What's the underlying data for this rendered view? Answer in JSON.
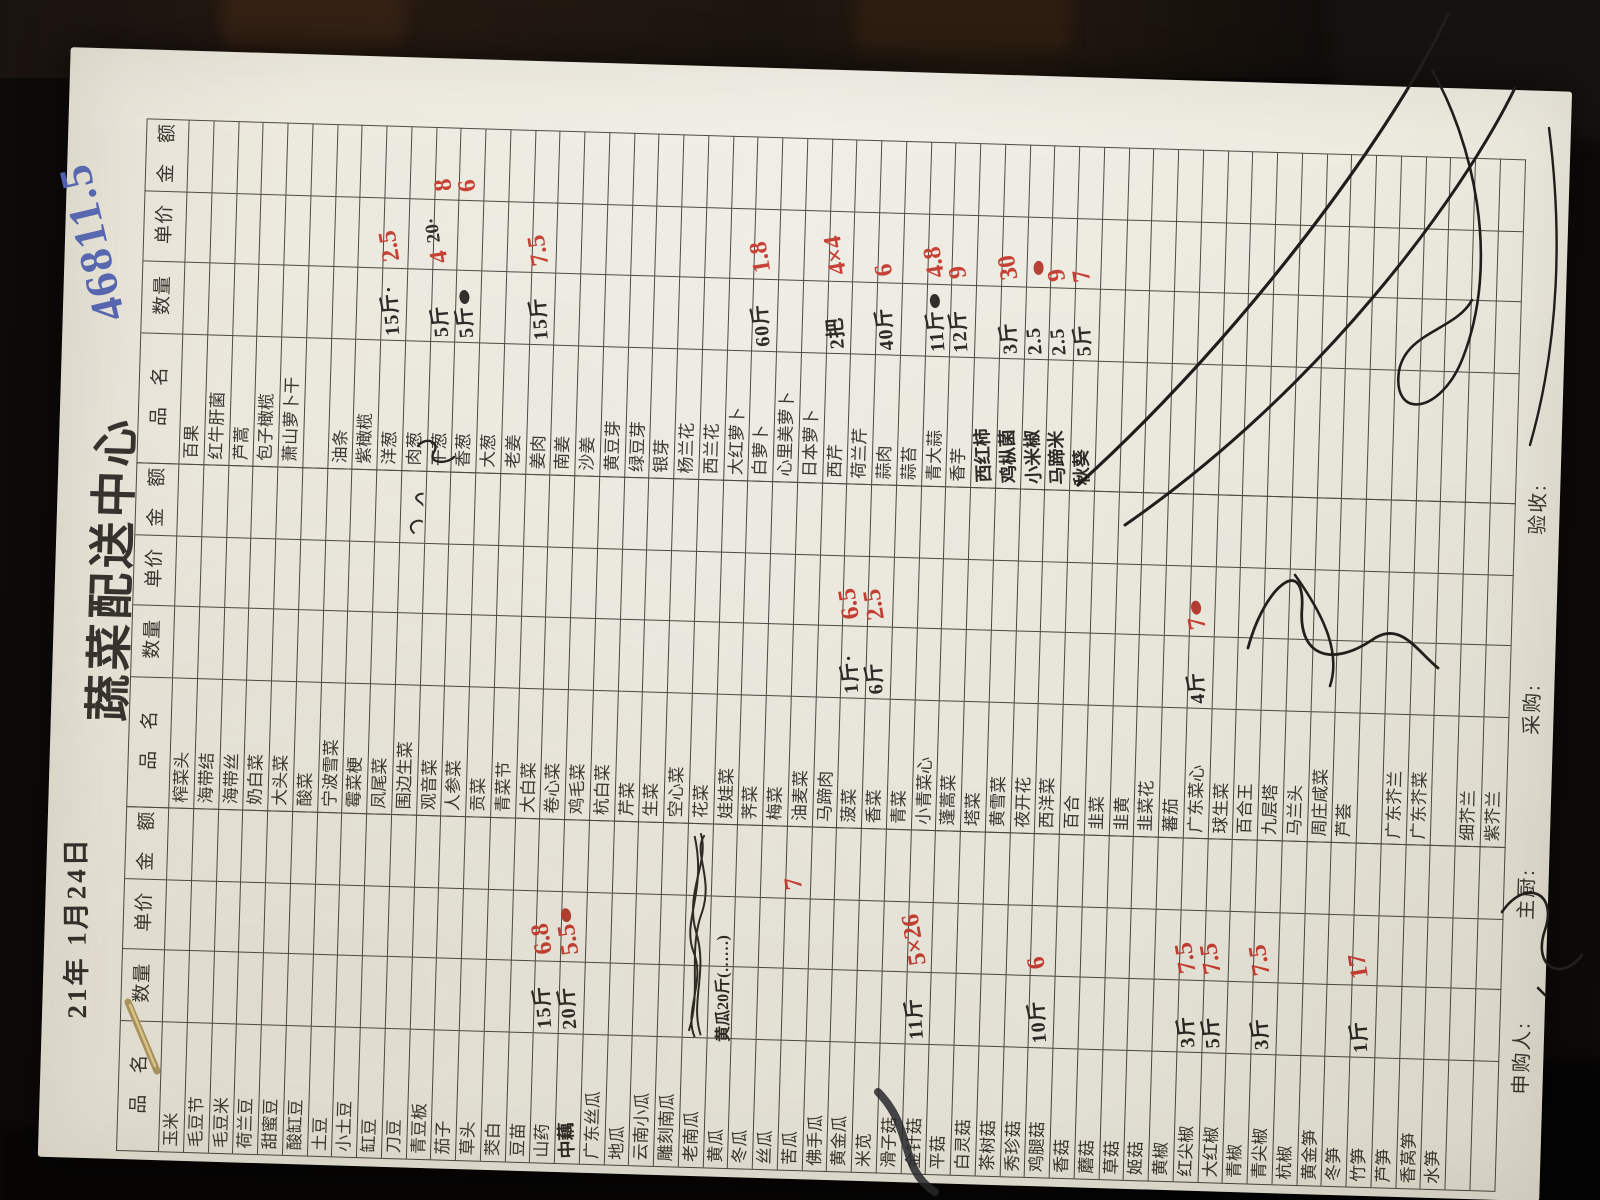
{
  "photo": {
    "background_color": "#0d0b09",
    "paper_color": "#efece2",
    "ink": {
      "printed": "#33302b",
      "hand_black": "#26231f",
      "hand_red": "#c6392d",
      "hand_blue": "#5061ae"
    }
  },
  "form": {
    "title": "蔬菜配送中心",
    "date": "21年 1月24日",
    "total_note": {
      "text": "46811.5",
      "color": "#5061ae"
    },
    "headers": [
      "品　名",
      "数量",
      "单价",
      "金　额"
    ],
    "footer_labels": [
      "申购人:",
      "主厨:",
      "采购:",
      "验收:"
    ],
    "groups": [
      {
        "rows": [
          {
            "n": "玉米"
          },
          {
            "n": "毛豆节"
          },
          {
            "n": "毛豆米"
          },
          {
            "n": "荷兰豆"
          },
          {
            "n": "甜蜜豆"
          },
          {
            "n": "酸缸豆"
          },
          {
            "n": "土豆"
          },
          {
            "n": "小土豆"
          },
          {
            "n": "缸豆"
          },
          {
            "n": "刀豆"
          },
          {
            "n": "青豆板"
          },
          {
            "n": "茄子"
          },
          {
            "n": "草头"
          },
          {
            "n": "茭白"
          },
          {
            "n": "豆苗"
          },
          {
            "n": "山药",
            "q": "15斤",
            "p": "6.8"
          },
          {
            "n": "中藕",
            "h": 1,
            "q": "20斤",
            "p": "5.5",
            "bp": 1
          },
          {
            "n": "广东丝瓜"
          },
          {
            "n": "地瓜"
          },
          {
            "n": "云南小瓜"
          },
          {
            "n": "雕刻南瓜"
          },
          {
            "n": "老南瓜",
            "scr": "big"
          },
          {
            "n": "黄瓜",
            "note": "黄瓜20斤(……)"
          },
          {
            "n": "冬瓜"
          },
          {
            "n": "丝瓜"
          },
          {
            "n": "苦瓜",
            "a": "7"
          },
          {
            "n": "佛手瓜"
          },
          {
            "n": "黄金瓜"
          },
          {
            "n": "米苋"
          },
          {
            "n": "滑子菇"
          },
          {
            "n": "金针菇",
            "q": "11斤",
            "p": "5×26"
          },
          {
            "n": "平菇"
          },
          {
            "n": "白灵菇"
          },
          {
            "n": "茶树菇"
          },
          {
            "n": "秀珍菇"
          },
          {
            "n": "鸡腿菇",
            "q": "10斤",
            "p": "6"
          },
          {
            "n": "香菇"
          },
          {
            "n": "蘑菇"
          },
          {
            "n": "草菇"
          },
          {
            "n": "姬菇"
          },
          {
            "n": "黄椒"
          },
          {
            "n": "红尖椒",
            "q": "3斤",
            "p": "7.5"
          },
          {
            "n": "大红椒",
            "q": "5斤",
            "p": "7.5"
          },
          {
            "n": "青椒"
          },
          {
            "n": "青尖椒",
            "q": "3斤",
            "p": "7.5"
          },
          {
            "n": "杭椒"
          },
          {
            "n": "黄金笋"
          },
          {
            "n": "冬笋"
          },
          {
            "n": "竹笋",
            "q": "1斤",
            "p": "17"
          },
          {
            "n": "芦笋"
          },
          {
            "n": "香莴笋"
          },
          {
            "n": "水笋"
          },
          {},
          {}
        ]
      },
      {
        "rows": [
          {
            "n": "榨菜头"
          },
          {
            "n": "海带结"
          },
          {
            "n": "海带丝"
          },
          {
            "n": "奶白菜"
          },
          {
            "n": "大头菜"
          },
          {
            "n": "酸菜"
          },
          {
            "n": "宁波雪菜"
          },
          {
            "n": "霉菜梗"
          },
          {
            "n": "凤尾菜"
          },
          {
            "n": "围边生菜",
            "scr": "sm"
          },
          {
            "n": "观音菜"
          },
          {
            "n": "人参菜"
          },
          {
            "n": "贡菜"
          },
          {
            "n": "青菜节"
          },
          {
            "n": "大白菜"
          },
          {
            "n": "卷心菜"
          },
          {
            "n": "鸡毛菜"
          },
          {
            "n": "杭白菜"
          },
          {
            "n": "芹菜"
          },
          {
            "n": "生菜"
          },
          {
            "n": "空心菜"
          },
          {
            "n": "花菜"
          },
          {
            "n": "娃娃菜"
          },
          {
            "n": "荠菜"
          },
          {
            "n": "梅菜"
          },
          {
            "n": "油麦菜"
          },
          {
            "n": "马蹄肉"
          },
          {
            "n": "菠菜",
            "q": "1斤·",
            "p": "6.5"
          },
          {
            "n": "香菜",
            "q": "6斤",
            "p": "2.5"
          },
          {
            "n": "青菜"
          },
          {
            "n": "小青菜心"
          },
          {
            "n": "蓬蒿菜"
          },
          {
            "n": "塔菜"
          },
          {
            "n": "黄雪菜"
          },
          {
            "n": "夜开花"
          },
          {
            "n": "西洋菜"
          },
          {
            "n": "百合"
          },
          {
            "n": "韭菜"
          },
          {
            "n": "韭黄"
          },
          {
            "n": "韭菜花"
          },
          {
            "n": "蕃茄"
          },
          {
            "n": "广东菜心",
            "q": "4斤",
            "p": "7",
            "bp": 1
          },
          {
            "n": "球生菜"
          },
          {
            "n": "百合王"
          },
          {
            "n": "九层塔"
          },
          {
            "n": "马兰头"
          },
          {
            "n": "周庄咸菜"
          },
          {
            "n": "芦荟"
          },
          {},
          {
            "n": "广东芥兰"
          },
          {
            "n": "广东芥菜"
          },
          {},
          {
            "n": "细芥兰"
          },
          {
            "n": "紫芥兰"
          }
        ]
      },
      {
        "rows": [
          {
            "n": "百果"
          },
          {
            "n": "红牛肝菌"
          },
          {
            "n": "芦蒿"
          },
          {
            "n": "包子橄榄"
          },
          {
            "n": "萧山萝卜干"
          },
          {},
          {
            "n": "油条"
          },
          {
            "n": "紫橄榄"
          },
          {
            "n": "洋葱",
            "q": "15斤·",
            "p": "2.5"
          },
          {
            "n": "肉葱"
          },
          {
            "n": "干葱",
            "q": "5斤",
            "pb": "20·",
            "p": "4",
            "a": "8"
          },
          {
            "n": "香葱",
            "q": "5斤",
            "bq": 1,
            "a": "6"
          },
          {
            "n": "大葱"
          },
          {
            "n": "老姜"
          },
          {
            "n": "姜肉",
            "q": "15斤",
            "p": "7.5"
          },
          {
            "n": "南姜"
          },
          {
            "n": "沙姜"
          },
          {
            "n": "黄豆芽"
          },
          {
            "n": "绿豆芽"
          },
          {
            "n": "银芽"
          },
          {
            "n": "杨兰花"
          },
          {
            "n": "西兰花"
          },
          {
            "n": "大红萝卜"
          },
          {
            "n": "白萝卜",
            "q": "60斤",
            "p": "1.8"
          },
          {
            "n": "心里美萝卜"
          },
          {
            "n": "日本萝卜"
          },
          {
            "n": "西芹",
            "q": "2把",
            "p": "4×4"
          },
          {
            "n": "荷兰芹"
          },
          {
            "n": "蒜肉",
            "q": "40斤",
            "p": "6"
          },
          {
            "n": "蒜苔"
          },
          {
            "n": "青大蒜",
            "q": "11斤",
            "bq": 1,
            "p": "4.8"
          },
          {
            "n": "香芋",
            "q": "12斤",
            "p": "9"
          },
          {
            "n": "西红柿",
            "h": 1
          },
          {
            "n": "鸡枞菌",
            "h": 1,
            "q": "3斤",
            "p": "30"
          },
          {
            "n": "小米椒",
            "h": 1,
            "q": "2.5",
            "bp": 1
          },
          {
            "n": "马蹄米",
            "h": 1,
            "q": "2.5",
            "p": "9"
          },
          {
            "n": "秋葵",
            "h": 1,
            "q": "5斤",
            "p": "7"
          },
          {},
          {},
          {},
          {},
          {},
          {},
          {},
          {},
          {},
          {},
          {},
          {},
          {},
          {},
          {},
          {},
          {}
        ]
      }
    ],
    "annotations": {
      "signatures": [
        "inspector-signature",
        "buyer-signature",
        "requester-signature"
      ],
      "objects": [
        "wooden-stick",
        "ink-scribbles"
      ]
    }
  }
}
